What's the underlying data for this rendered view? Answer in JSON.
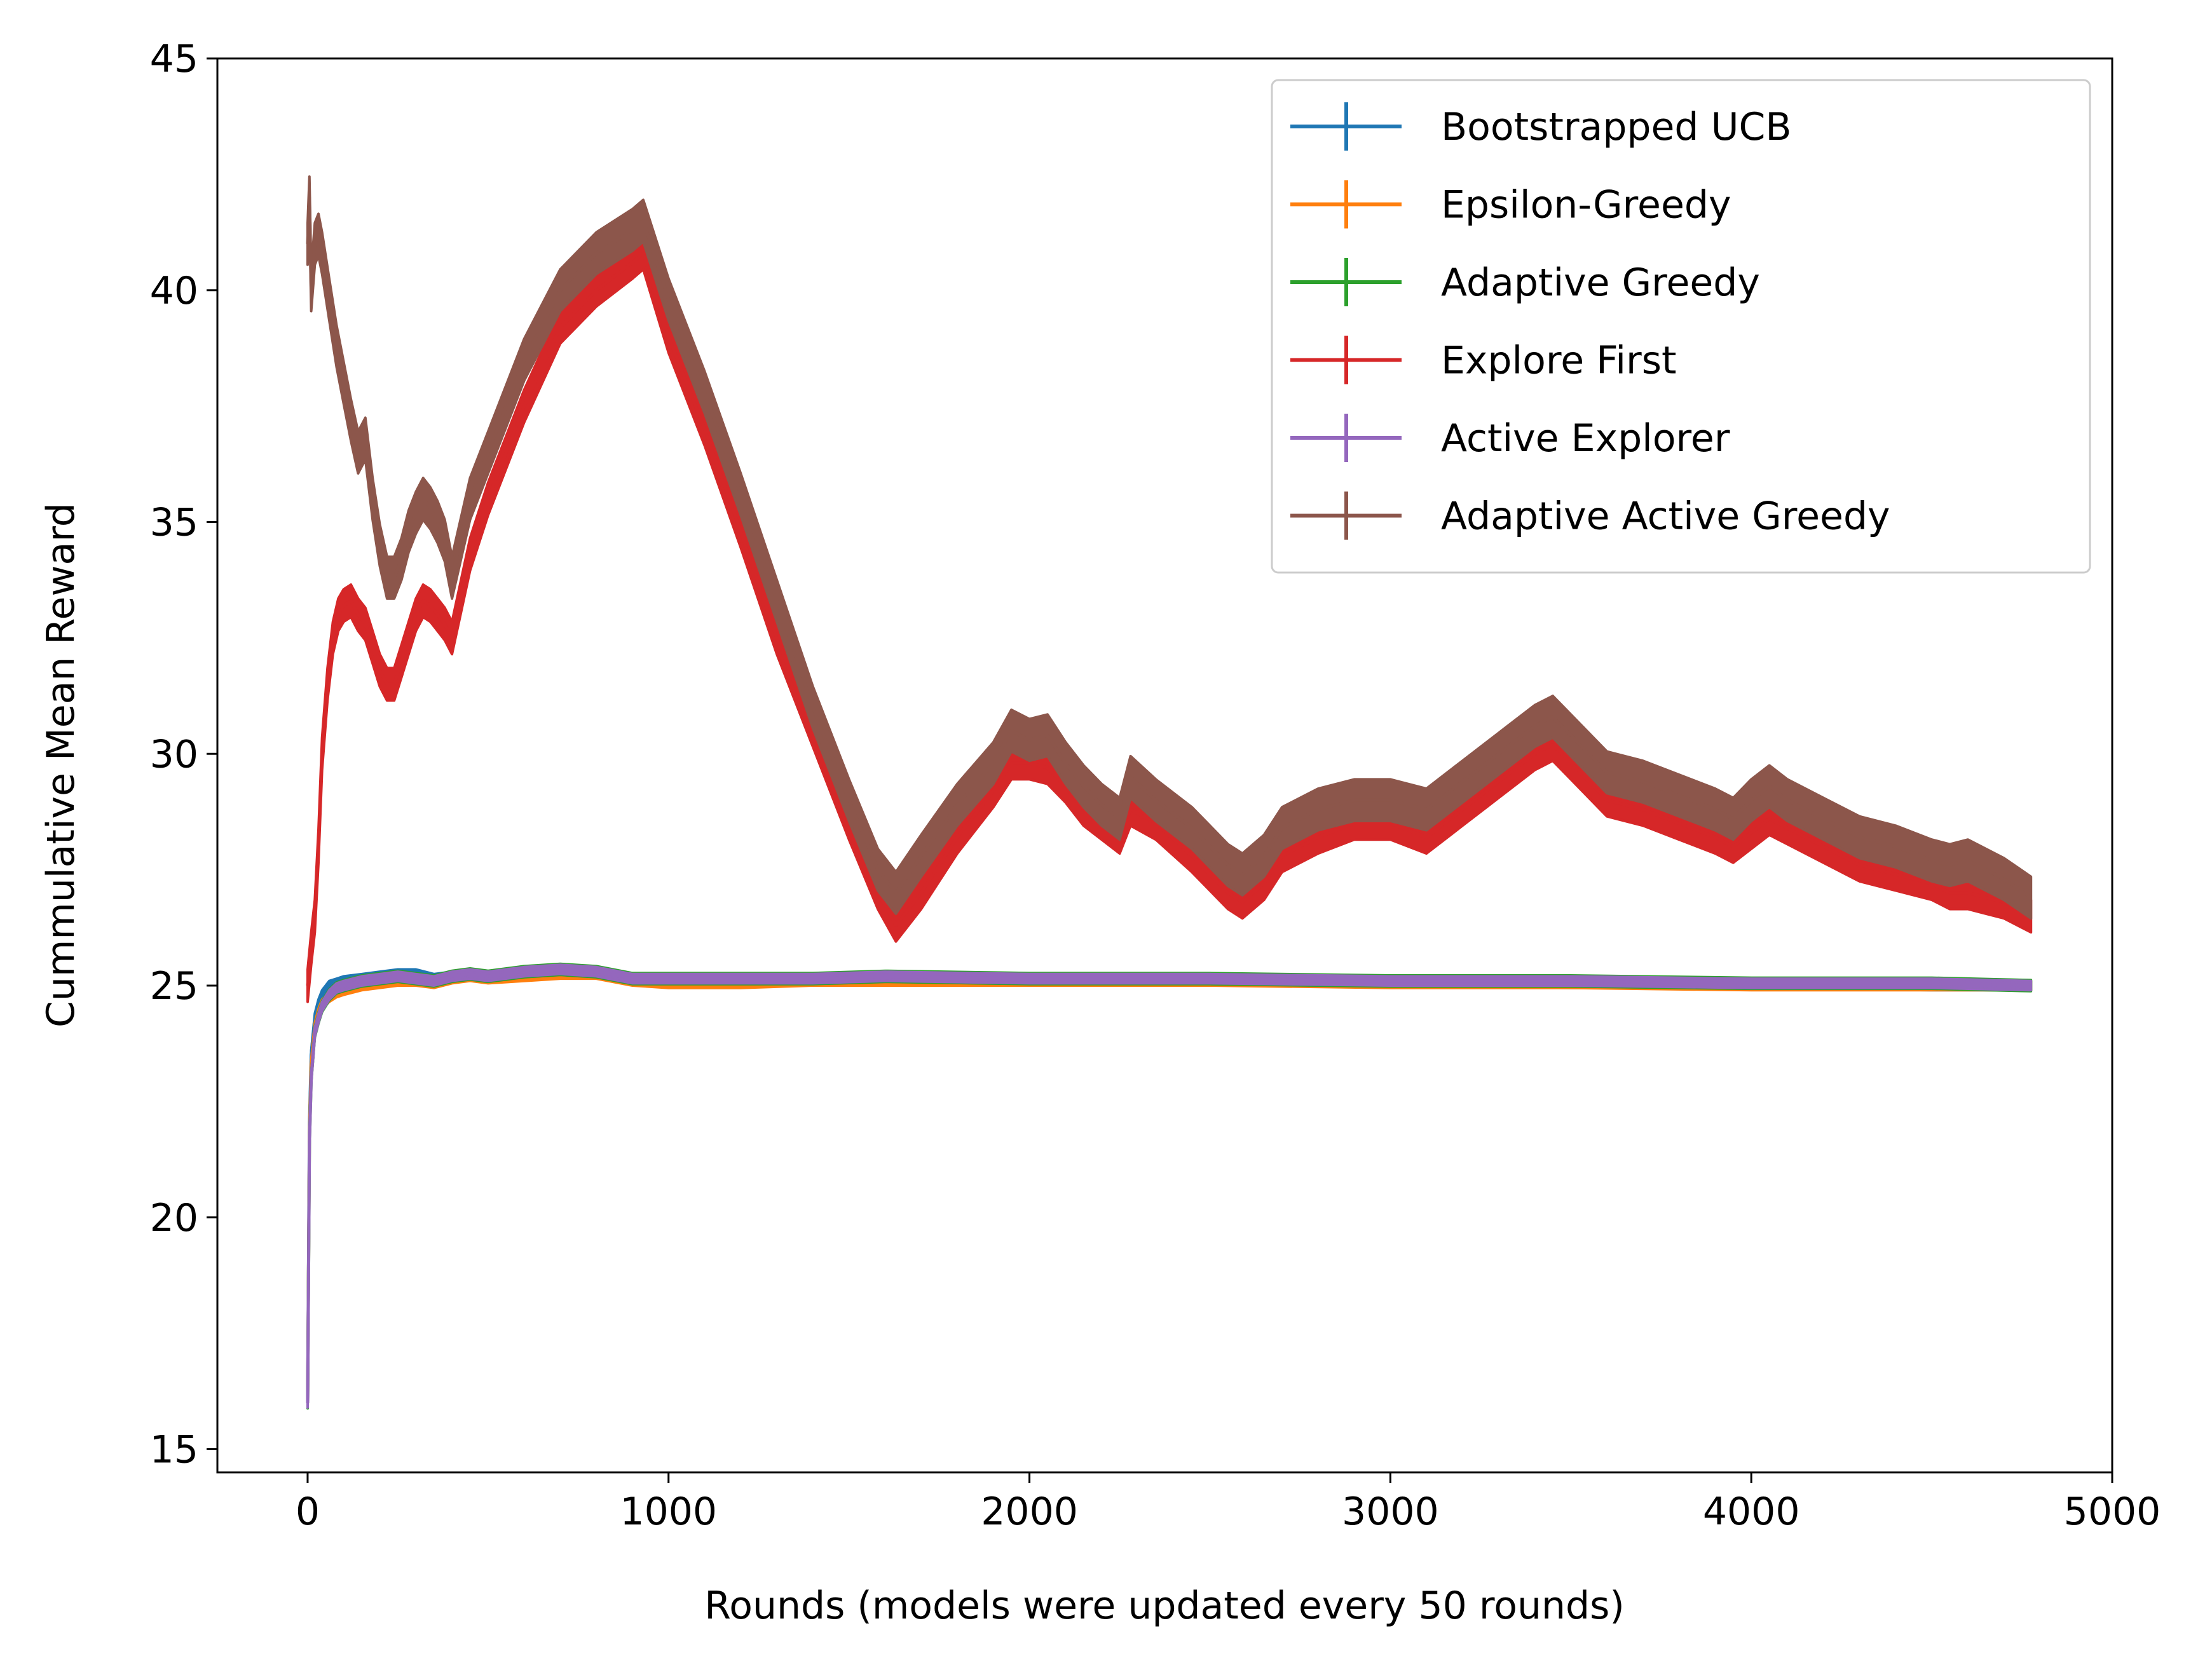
{
  "chart_data": {
    "type": "line",
    "title": "",
    "xlabel": "Rounds (models were updated every 50 rounds)",
    "ylabel": "Cummulative Mean Reward",
    "xlim": [
      -250,
      5000
    ],
    "ylim": [
      14.5,
      45
    ],
    "xticks": [
      0,
      1000,
      2000,
      3000,
      4000,
      5000
    ],
    "xtick_labels": [
      "0",
      "1000",
      "2000",
      "3000",
      "4000",
      "5000"
    ],
    "yticks": [
      15,
      20,
      25,
      30,
      35,
      40,
      45
    ],
    "ytick_labels": [
      "15",
      "20",
      "25",
      "30",
      "35",
      "40",
      "45"
    ],
    "grid": false,
    "legend_position": "top-right",
    "error_bars": "vertical bars at each point (shaded band)",
    "series": [
      {
        "name": "Bootstrapped UCB",
        "color": "#1f77b4",
        "x": [
          0,
          5,
          10,
          20,
          30,
          40,
          60,
          80,
          100,
          150,
          200,
          250,
          300,
          350,
          400,
          450,
          500,
          600,
          700,
          800,
          900,
          1000,
          1200,
          1400,
          1600,
          2000,
          2500,
          3000,
          3500,
          4000,
          4500,
          4775
        ],
        "y": [
          16.0,
          22.0,
          23.5,
          24.3,
          24.6,
          24.8,
          25.0,
          25.05,
          25.1,
          25.15,
          25.2,
          25.25,
          25.25,
          25.15,
          25.2,
          25.25,
          25.2,
          25.25,
          25.3,
          25.3,
          25.15,
          25.1,
          25.1,
          25.15,
          25.15,
          25.15,
          25.1,
          25.1,
          25.05,
          25.05,
          25.0,
          25.0
        ],
        "err": 0.1
      },
      {
        "name": "Epsilon-Greedy",
        "color": "#ff7f0e",
        "x": [
          0,
          5,
          10,
          20,
          30,
          40,
          60,
          80,
          100,
          150,
          200,
          250,
          300,
          350,
          400,
          450,
          500,
          600,
          700,
          800,
          900,
          1000,
          1200,
          1400,
          1600,
          2000,
          2500,
          3000,
          3500,
          4000,
          4500,
          4775
        ],
        "y": [
          16.0,
          21.8,
          23.3,
          24.1,
          24.4,
          24.6,
          24.75,
          24.85,
          24.9,
          25.0,
          25.05,
          25.1,
          25.1,
          25.05,
          25.15,
          25.2,
          25.15,
          25.2,
          25.25,
          25.25,
          25.1,
          25.05,
          25.05,
          25.1,
          25.1,
          25.1,
          25.1,
          25.05,
          25.05,
          25.0,
          25.0,
          25.0
        ],
        "err": 0.1
      },
      {
        "name": "Adaptive Greedy",
        "color": "#2ca02c",
        "x": [
          0,
          5,
          10,
          20,
          30,
          40,
          60,
          80,
          100,
          150,
          200,
          250,
          300,
          350,
          400,
          450,
          500,
          600,
          700,
          800,
          900,
          1000,
          1200,
          1400,
          1600,
          2000,
          2500,
          3000,
          3500,
          4000,
          4500,
          4775
        ],
        "y": [
          16.0,
          21.6,
          23.0,
          24.0,
          24.3,
          24.55,
          24.8,
          24.95,
          25.0,
          25.1,
          25.15,
          25.2,
          25.15,
          25.1,
          25.2,
          25.25,
          25.2,
          25.3,
          25.35,
          25.3,
          25.15,
          25.15,
          25.15,
          25.15,
          25.2,
          25.15,
          25.15,
          25.1,
          25.1,
          25.05,
          25.05,
          25.0
        ],
        "err": 0.12
      },
      {
        "name": "Explore First",
        "color": "#d62728",
        "x": [
          0,
          10,
          20,
          30,
          40,
          55,
          70,
          85,
          100,
          120,
          140,
          160,
          180,
          200,
          220,
          240,
          260,
          280,
          300,
          320,
          340,
          360,
          380,
          400,
          450,
          500,
          600,
          700,
          800,
          900,
          930,
          1000,
          1100,
          1200,
          1300,
          1400,
          1500,
          1580,
          1630,
          1700,
          1800,
          1900,
          1950,
          2000,
          2050,
          2100,
          2150,
          2200,
          2250,
          2280,
          2350,
          2450,
          2550,
          2590,
          2650,
          2700,
          2800,
          2900,
          3000,
          3100,
          3200,
          3300,
          3400,
          3450,
          3500,
          3600,
          3700,
          3800,
          3900,
          3950,
          4000,
          4050,
          4100,
          4200,
          4300,
          4400,
          4500,
          4550,
          4600,
          4650,
          4700,
          4775
        ],
        "y": [
          25.0,
          25.8,
          26.5,
          28.0,
          30.0,
          31.5,
          32.5,
          33.0,
          33.2,
          33.3,
          33.0,
          32.8,
          32.3,
          31.8,
          31.5,
          31.5,
          32.0,
          32.5,
          33.0,
          33.3,
          33.2,
          33.0,
          32.8,
          32.5,
          34.3,
          35.5,
          37.5,
          39.2,
          40.0,
          40.6,
          40.8,
          39.0,
          37.0,
          34.8,
          32.5,
          30.5,
          28.5,
          27.0,
          26.3,
          27.0,
          28.2,
          29.2,
          29.8,
          29.8,
          29.7,
          29.3,
          28.8,
          28.5,
          28.2,
          28.8,
          28.5,
          27.8,
          27.0,
          26.8,
          27.2,
          27.8,
          28.2,
          28.5,
          28.5,
          28.2,
          28.8,
          29.4,
          30.0,
          30.2,
          29.8,
          29.0,
          28.8,
          28.5,
          28.2,
          28.0,
          28.3,
          28.6,
          28.4,
          28.0,
          27.6,
          27.4,
          27.2,
          27.0,
          27.0,
          26.9,
          26.8,
          26.5
        ],
        "err": 0.35
      },
      {
        "name": "Active Explorer",
        "color": "#9467bd",
        "x": [
          0,
          5,
          10,
          20,
          30,
          40,
          60,
          80,
          100,
          150,
          200,
          250,
          300,
          350,
          400,
          450,
          500,
          600,
          700,
          800,
          900,
          1000,
          1200,
          1400,
          1600,
          2000,
          2500,
          3000,
          3500,
          4000,
          4500,
          4775
        ],
        "y": [
          16.0,
          21.6,
          23.0,
          24.0,
          24.3,
          24.55,
          24.8,
          24.95,
          25.0,
          25.1,
          25.15,
          25.2,
          25.15,
          25.1,
          25.2,
          25.25,
          25.2,
          25.3,
          25.35,
          25.3,
          25.15,
          25.15,
          25.15,
          25.15,
          25.2,
          25.15,
          25.15,
          25.1,
          25.1,
          25.05,
          25.05,
          25.0
        ],
        "err": 0.1
      },
      {
        "name": "Adaptive Active Greedy",
        "color": "#8c564b",
        "x": [
          0,
          5,
          10,
          20,
          30,
          40,
          60,
          80,
          100,
          120,
          140,
          160,
          180,
          200,
          220,
          240,
          260,
          280,
          300,
          320,
          340,
          360,
          380,
          400,
          450,
          500,
          600,
          700,
          800,
          900,
          930,
          1000,
          1100,
          1200,
          1300,
          1400,
          1500,
          1580,
          1630,
          1700,
          1800,
          1900,
          1950,
          2000,
          2050,
          2100,
          2150,
          2200,
          2250,
          2280,
          2350,
          2450,
          2550,
          2590,
          2650,
          2700,
          2800,
          2900,
          3000,
          3100,
          3200,
          3300,
          3400,
          3450,
          3500,
          3600,
          3700,
          3800,
          3900,
          3950,
          4000,
          4050,
          4100,
          4200,
          4300,
          4400,
          4500,
          4550,
          4600,
          4650,
          4700,
          4775
        ],
        "y": [
          41.0,
          42.0,
          40.0,
          41.0,
          41.2,
          40.8,
          39.8,
          38.8,
          38.0,
          37.2,
          36.5,
          36.8,
          35.5,
          34.5,
          33.8,
          33.8,
          34.2,
          34.8,
          35.2,
          35.5,
          35.3,
          35.0,
          34.6,
          33.8,
          35.5,
          36.5,
          38.5,
          40.0,
          40.8,
          41.3,
          41.5,
          39.8,
          37.8,
          35.6,
          33.3,
          31.0,
          29.0,
          27.5,
          27.0,
          27.8,
          28.9,
          29.8,
          30.5,
          30.3,
          30.4,
          29.8,
          29.3,
          28.9,
          28.6,
          29.5,
          29.0,
          28.4,
          27.6,
          27.4,
          27.8,
          28.4,
          28.8,
          29.0,
          29.0,
          28.8,
          29.4,
          30.0,
          30.6,
          30.8,
          30.4,
          29.6,
          29.4,
          29.1,
          28.8,
          28.6,
          29.0,
          29.3,
          29.0,
          28.6,
          28.2,
          28.0,
          27.7,
          27.6,
          27.7,
          27.5,
          27.3,
          26.9
        ],
        "err": 0.45
      }
    ]
  }
}
